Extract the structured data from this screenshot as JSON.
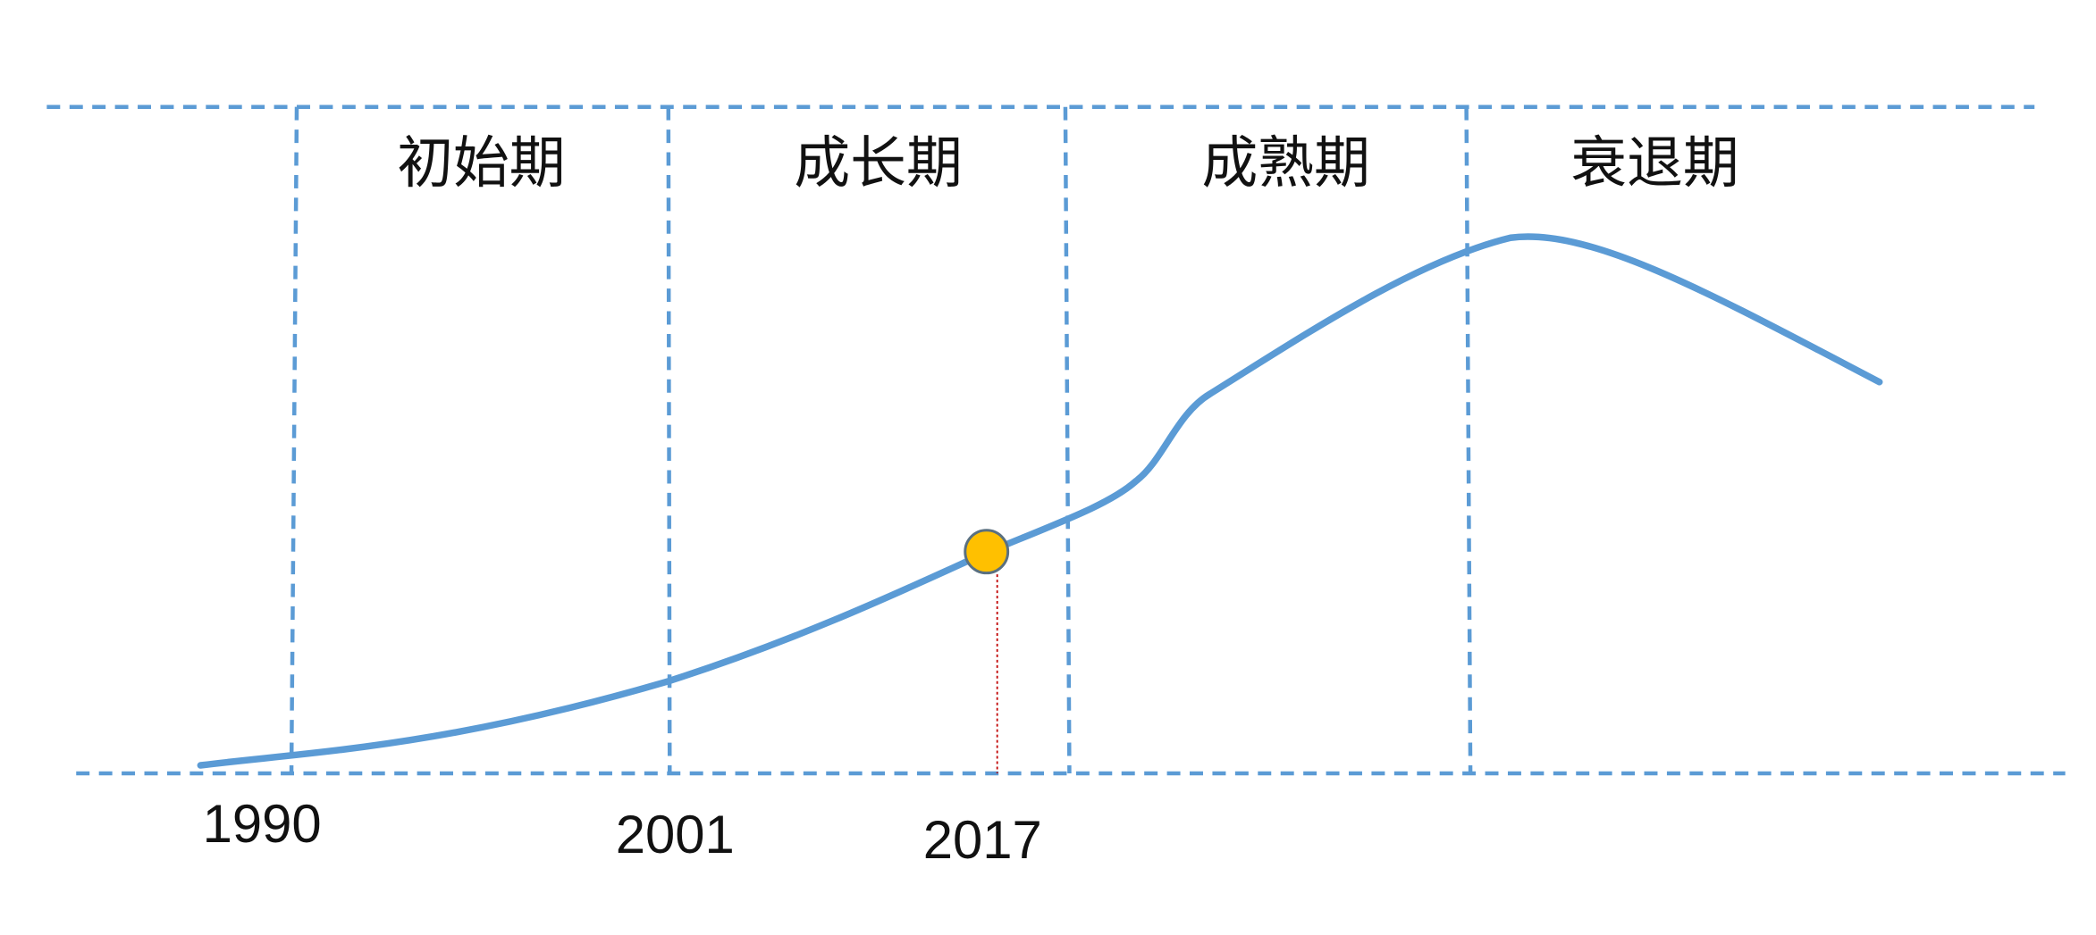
{
  "stages": [
    "初始期",
    "成长期",
    "成熟期",
    "衰退期"
  ],
  "years": [
    "1990",
    "2001",
    "2017"
  ]
}
